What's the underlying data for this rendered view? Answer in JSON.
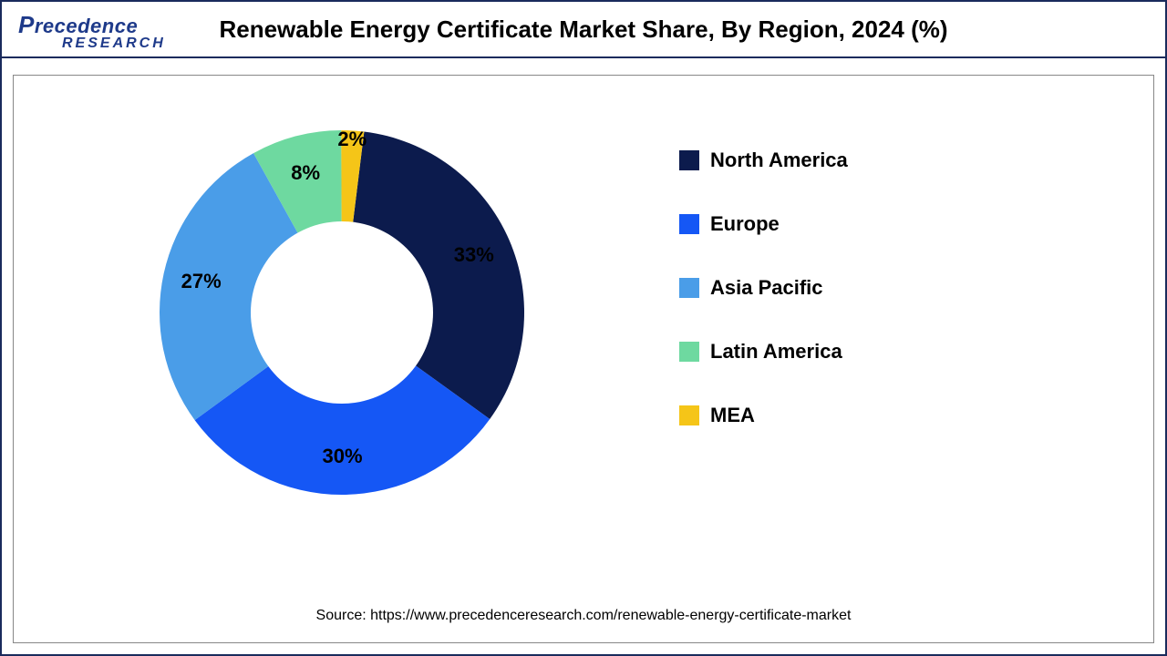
{
  "logo": {
    "main": "Precedence",
    "sub": "RESEARCH"
  },
  "title": "Renewable Energy Certificate Market Share, By Region, 2024 (%)",
  "source": "Source: https://www.precedenceresearch.com/renewable-energy-certificate-market",
  "chart": {
    "type": "donut",
    "inner_radius_ratio": 0.48,
    "background_color": "#ffffff",
    "border_color": "#888888",
    "title_fontsize": 26,
    "label_fontsize": 22,
    "legend_fontsize": 22,
    "font_weight": "bold",
    "start_angle_deg": 7,
    "direction": "clockwise",
    "slices": [
      {
        "label": "North America",
        "value": 33,
        "display": "33%",
        "color": "#0c1b4d"
      },
      {
        "label": "Europe",
        "value": 30,
        "display": "30%",
        "color": "#1557f5"
      },
      {
        "label": "Asia Pacific",
        "value": 27,
        "display": "27%",
        "color": "#4a9de8"
      },
      {
        "label": "Latin America",
        "value": 8,
        "display": "8%",
        "color": "#6ed9a0"
      },
      {
        "label": "MEA",
        "value": 2,
        "display": "2%",
        "color": "#f5c518"
      }
    ]
  }
}
